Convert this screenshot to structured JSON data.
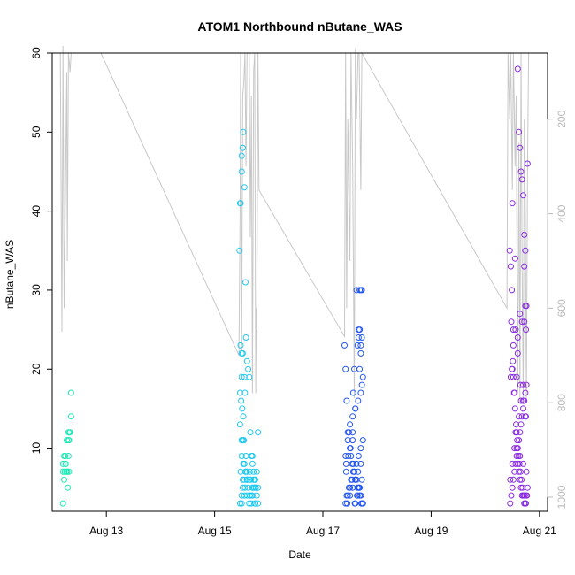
{
  "chart_data": {
    "type": "scatter",
    "title": "ATOM1 Northbound nButane_WAS",
    "xlabel": "Date",
    "ylabel": "nButane_WAS",
    "xlim": [
      12.0,
      21.15
    ],
    "ylim": [
      2,
      60
    ],
    "x_ticks": [
      {
        "value": 13,
        "label": "Aug 13"
      },
      {
        "value": 15,
        "label": "Aug 15"
      },
      {
        "value": 17,
        "label": "Aug 17"
      },
      {
        "value": 19,
        "label": "Aug 19"
      },
      {
        "value": 21,
        "label": "Aug 21"
      }
    ],
    "y_ticks": [
      10,
      20,
      30,
      40,
      50,
      60
    ],
    "secondary_axis": {
      "ticks": [
        200,
        400,
        600,
        800,
        1000
      ],
      "range_top": 60,
      "range_bottom": 1030,
      "color": "#bbbbbb"
    },
    "grid": false,
    "legend": "none",
    "groups": [
      {
        "color": "#1de9b6",
        "x": [
          12.2,
          12.22,
          12.2,
          12.23,
          12.25,
          12.22,
          12.26,
          12.2,
          12.24,
          12.28,
          12.25,
          12.3,
          12.3,
          12.27,
          12.31,
          12.32,
          12.3,
          12.33,
          12.35,
          12.35,
          12.31,
          12.28,
          12.29
        ],
        "y": [
          3,
          6,
          7,
          7,
          8,
          9,
          7,
          8,
          9,
          7,
          8,
          9,
          11,
          11,
          11,
          12,
          12,
          12,
          14,
          17,
          7,
          7,
          5
        ]
      },
      {
        "color": "#1ec8f0",
        "x": [
          15.46,
          15.47,
          15.48,
          15.5,
          15.5,
          15.52,
          15.53,
          15.55,
          15.57,
          15.58,
          15.6,
          15.62,
          15.64,
          15.66,
          15.68,
          15.7,
          15.72,
          15.74,
          15.76,
          15.78,
          15.8,
          15.47,
          15.5,
          15.52,
          15.55,
          15.58,
          15.6,
          15.62,
          15.65,
          15.68,
          15.7,
          15.73,
          15.75,
          15.78,
          15.8,
          15.48,
          15.52,
          15.56,
          15.6,
          15.64,
          15.68,
          15.72,
          15.76,
          15.5,
          15.55,
          15.6,
          15.65,
          15.7,
          15.75,
          15.48,
          15.5,
          15.52,
          15.55,
          15.5,
          15.47,
          15.49,
          15.51,
          15.53,
          15.47,
          15.5,
          15.52,
          15.54,
          15.56,
          15.58,
          15.5,
          15.53,
          15.55,
          15.57,
          15.6,
          15.64,
          15.67,
          15.7,
          15.73,
          15.8,
          15.6,
          15.65,
          15.7,
          15.75
        ],
        "y": [
          35,
          41,
          41,
          45,
          47,
          48,
          50,
          43,
          31,
          24,
          21,
          20,
          19,
          12,
          9,
          8,
          7,
          6,
          5,
          4,
          3,
          3,
          4,
          5,
          6,
          7,
          6,
          5,
          4,
          3,
          4,
          5,
          6,
          7,
          5,
          7,
          6,
          5,
          4,
          3,
          4,
          6,
          5,
          3,
          4,
          6,
          7,
          5,
          3,
          23,
          22,
          22,
          19,
          19,
          17,
          16,
          15,
          14,
          13,
          11,
          11,
          11,
          17,
          9,
          9,
          8,
          8,
          7,
          7,
          6,
          6,
          5,
          5,
          12,
          6,
          4,
          9,
          3
        ],
        "ring": true
      },
      {
        "color": "#2255f0",
        "x": [
          17.4,
          17.42,
          17.44,
          17.46,
          17.48,
          17.5,
          17.52,
          17.54,
          17.56,
          17.58,
          17.6,
          17.62,
          17.64,
          17.66,
          17.68,
          17.7,
          17.72,
          17.74,
          17.42,
          17.46,
          17.5,
          17.54,
          17.58,
          17.62,
          17.66,
          17.7,
          17.74,
          17.44,
          17.48,
          17.52,
          17.56,
          17.6,
          17.64,
          17.68,
          17.72,
          17.43,
          17.47,
          17.51,
          17.55,
          17.59,
          17.63,
          17.67,
          17.71,
          17.45,
          17.5,
          17.55,
          17.6,
          17.65,
          17.7,
          17.43,
          17.5,
          17.55,
          17.6,
          17.65,
          17.7,
          17.72,
          17.74,
          17.68,
          17.7,
          17.72,
          17.66,
          17.68,
          17.62,
          17.64,
          17.58,
          17.6,
          17.56,
          17.55,
          17.46,
          17.42,
          17.72,
          17.7,
          17.7,
          17.68,
          17.66
        ],
        "y": [
          23,
          20,
          16,
          12,
          12,
          10,
          9,
          8,
          8,
          7,
          6,
          6,
          5,
          5,
          4,
          4,
          3,
          3,
          3,
          4,
          5,
          6,
          7,
          8,
          9,
          10,
          11,
          4,
          5,
          6,
          7,
          3,
          4,
          5,
          6,
          8,
          9,
          10,
          11,
          3,
          4,
          5,
          3,
          3,
          4,
          5,
          6,
          7,
          8,
          7,
          13,
          14,
          15,
          16,
          17,
          18,
          19,
          20,
          22,
          24,
          25,
          30,
          30,
          23,
          20,
          15,
          17,
          12,
          11,
          9,
          30,
          30,
          23,
          25,
          24
        ],
        "ring": true
      },
      {
        "color": "#8a2be2",
        "x": [
          20.45,
          20.47,
          20.49,
          20.5,
          20.52,
          20.54,
          20.56,
          20.58,
          20.6,
          20.62,
          20.64,
          20.66,
          20.68,
          20.7,
          20.72,
          20.74,
          20.76,
          20.78,
          20.46,
          20.48,
          20.5,
          20.52,
          20.54,
          20.56,
          20.58,
          20.6,
          20.62,
          20.64,
          20.66,
          20.68,
          20.7,
          20.72,
          20.74,
          20.76,
          20.47,
          20.49,
          20.51,
          20.53,
          20.55,
          20.57,
          20.59,
          20.61,
          20.63,
          20.65,
          20.67,
          20.69,
          20.71,
          20.73,
          20.75,
          20.77,
          20.46,
          20.5,
          20.54,
          20.58,
          20.62,
          20.66,
          20.7,
          20.74,
          20.48,
          20.52,
          20.56,
          20.6,
          20.64,
          20.68,
          20.72,
          20.76,
          20.5,
          20.55,
          20.6,
          20.65,
          20.7,
          20.75,
          20.52,
          20.58,
          20.64,
          20.7,
          20.76,
          20.6,
          20.62,
          20.64,
          20.66,
          20.68,
          20.7,
          20.72,
          20.74,
          20.72,
          20.74,
          20.75,
          20.78
        ],
        "y": [
          35,
          33,
          30,
          20,
          19,
          17,
          12,
          10,
          8,
          7,
          6,
          5,
          4,
          4,
          3,
          3,
          4,
          5,
          3,
          4,
          5,
          6,
          7,
          8,
          9,
          10,
          11,
          12,
          13,
          14,
          15,
          16,
          17,
          18,
          19,
          20,
          21,
          17,
          15,
          13,
          11,
          9,
          8,
          7,
          6,
          5,
          4,
          4,
          3,
          4,
          6,
          8,
          10,
          12,
          14,
          16,
          18,
          14,
          26,
          25,
          25,
          24,
          27,
          26,
          26,
          28,
          41,
          34,
          22,
          18,
          16,
          14,
          23,
          19,
          9,
          8,
          7,
          58,
          50,
          48,
          45,
          44,
          42,
          37,
          35,
          33,
          28,
          25,
          46
        ],
        "ring": true
      }
    ],
    "altitude_series": {
      "color": "#c8c8c8",
      "points": [
        [
          12.15,
          60
        ],
        [
          12.18,
          650
        ],
        [
          12.2,
          45
        ],
        [
          12.22,
          600
        ],
        [
          12.25,
          300
        ],
        [
          12.27,
          100
        ],
        [
          12.28,
          500
        ],
        [
          12.3,
          60
        ],
        [
          12.33,
          100
        ],
        [
          12.35,
          60
        ],
        [
          12.9,
          60
        ],
        [
          15.45,
          700
        ],
        [
          15.47,
          400
        ],
        [
          15.48,
          60
        ],
        [
          15.5,
          690
        ],
        [
          15.52,
          150
        ],
        [
          15.54,
          120
        ],
        [
          15.56,
          60
        ],
        [
          15.58,
          300
        ],
        [
          15.6,
          60
        ],
        [
          15.62,
          60
        ],
        [
          15.64,
          60
        ],
        [
          15.66,
          450
        ],
        [
          15.68,
          150
        ],
        [
          15.7,
          780
        ],
        [
          15.72,
          100
        ],
        [
          15.74,
          60
        ],
        [
          15.76,
          780
        ],
        [
          15.77,
          600
        ],
        [
          15.78,
          650
        ],
        [
          15.8,
          60
        ],
        [
          15.82,
          350
        ],
        [
          17.4,
          660
        ],
        [
          17.42,
          60
        ],
        [
          17.44,
          600
        ],
        [
          17.46,
          200
        ],
        [
          17.5,
          500
        ],
        [
          17.52,
          60
        ],
        [
          17.55,
          300
        ],
        [
          17.58,
          790
        ],
        [
          17.6,
          50
        ],
        [
          17.62,
          200
        ],
        [
          17.65,
          60
        ],
        [
          17.67,
          60
        ],
        [
          17.7,
          350
        ],
        [
          17.72,
          60
        ],
        [
          20.4,
          600
        ],
        [
          20.42,
          60
        ],
        [
          20.45,
          200
        ],
        [
          20.47,
          60
        ],
        [
          20.5,
          350
        ],
        [
          20.52,
          60
        ],
        [
          20.55,
          300
        ],
        [
          20.57,
          150
        ],
        [
          20.6,
          780
        ],
        [
          20.62,
          250
        ],
        [
          20.64,
          800
        ],
        [
          20.66,
          60
        ],
        [
          20.68,
          500
        ],
        [
          20.7,
          790
        ],
        [
          20.72,
          200
        ],
        [
          20.74,
          400
        ],
        [
          20.76,
          800
        ],
        [
          20.78,
          300
        ],
        [
          20.8,
          60
        ]
      ]
    }
  }
}
